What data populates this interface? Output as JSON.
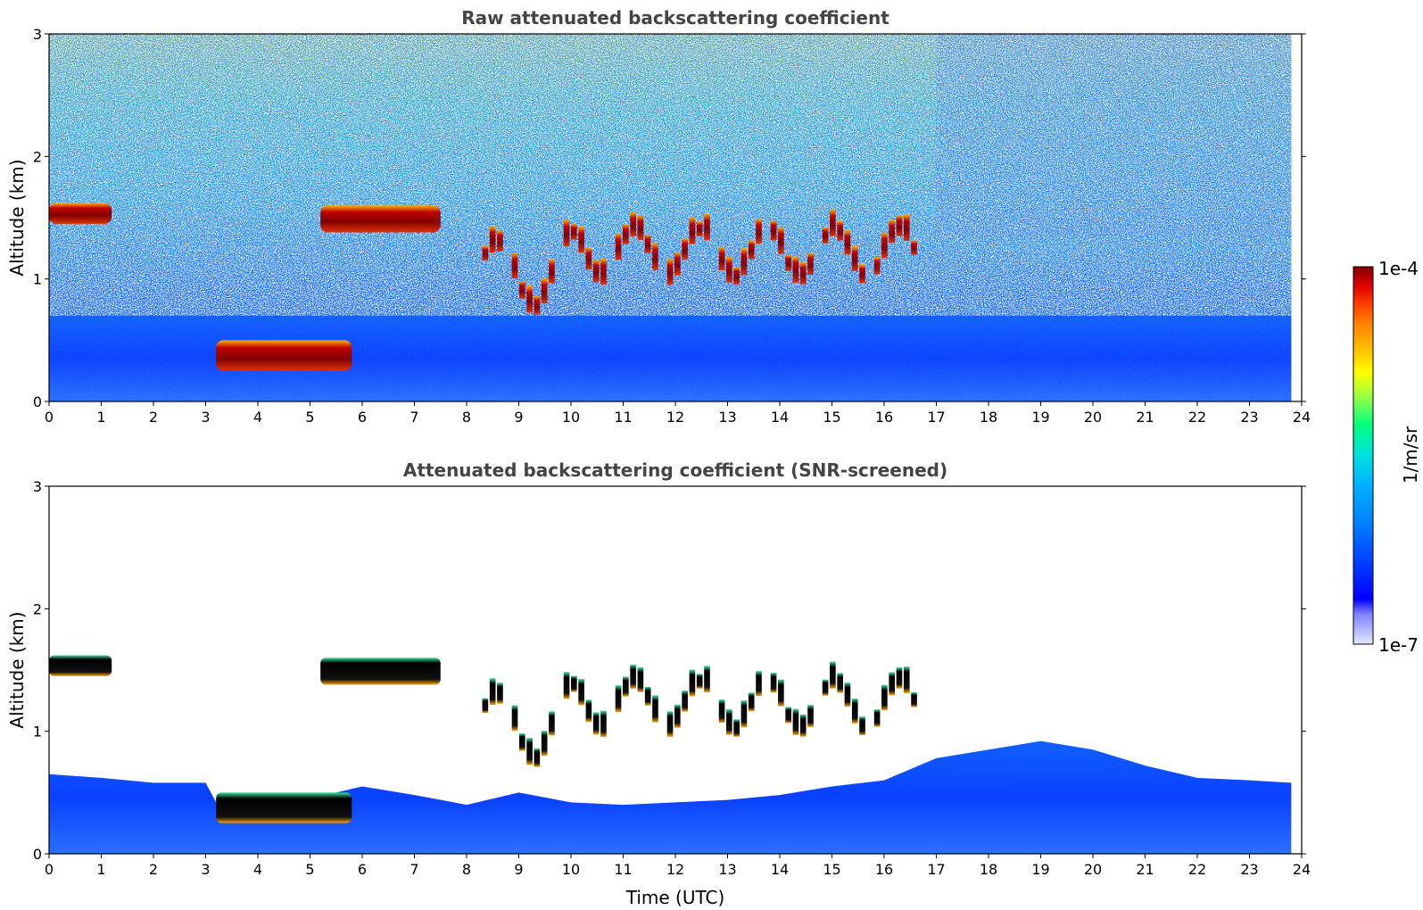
{
  "chart_data": [
    {
      "type": "heatmap",
      "title": "Raw attenuated backscattering coefficient",
      "xlabel": "",
      "ylabel": "Altitude (km)",
      "xlim": [
        0,
        24
      ],
      "ylim": [
        0,
        3
      ],
      "xticks": [
        "0",
        "1",
        "2",
        "3",
        "4",
        "5",
        "6",
        "7",
        "8",
        "9",
        "10",
        "11",
        "12",
        "13",
        "14",
        "15",
        "16",
        "17",
        "18",
        "19",
        "20",
        "21",
        "22",
        "23",
        "24"
      ],
      "yticks": [
        "0",
        "1",
        "2",
        "3"
      ],
      "data_end_hour": 23.8,
      "colormap": "jet",
      "features": [
        {
          "kind": "cloud_layer",
          "x_start": 0.0,
          "x_end": 1.2,
          "altitude_km": [
            1.45,
            1.62
          ]
        },
        {
          "kind": "cloud_layer",
          "x_start": 5.2,
          "x_end": 7.5,
          "altitude_km": [
            1.38,
            1.6
          ]
        },
        {
          "kind": "cloud_layer",
          "x_start": 3.2,
          "x_end": 5.8,
          "altitude_km": [
            0.25,
            0.5
          ]
        },
        {
          "kind": "cloud_broken",
          "x_start": 8.3,
          "x_end": 16.8,
          "altitude_km": [
            0.75,
            1.7
          ]
        },
        {
          "kind": "boundary_layer",
          "x_start": 0.0,
          "x_end": 23.8,
          "altitude_km": [
            0.0,
            0.7
          ]
        }
      ]
    },
    {
      "type": "heatmap",
      "title": "Attenuated backscattering coefficient (SNR-screened)",
      "xlabel": "Time (UTC)",
      "ylabel": "Altitude (km)",
      "xlim": [
        0,
        24
      ],
      "ylim": [
        0,
        3
      ],
      "xticks": [
        "0",
        "1",
        "2",
        "3",
        "4",
        "5",
        "6",
        "7",
        "8",
        "9",
        "10",
        "11",
        "12",
        "13",
        "14",
        "15",
        "16",
        "17",
        "18",
        "19",
        "20",
        "21",
        "22",
        "23",
        "24"
      ],
      "yticks": [
        "0",
        "1",
        "2",
        "3"
      ],
      "data_end_hour": 23.8,
      "boundary_layer_top_km": [
        [
          0,
          0.65
        ],
        [
          1,
          0.62
        ],
        [
          2,
          0.58
        ],
        [
          3,
          0.58
        ],
        [
          3.2,
          0.42
        ],
        [
          4,
          0.38
        ],
        [
          5,
          0.45
        ],
        [
          6,
          0.55
        ],
        [
          7,
          0.48
        ],
        [
          8,
          0.4
        ],
        [
          9,
          0.5
        ],
        [
          10,
          0.42
        ],
        [
          11,
          0.4
        ],
        [
          12,
          0.42
        ],
        [
          13,
          0.44
        ],
        [
          14,
          0.48
        ],
        [
          15,
          0.55
        ],
        [
          16,
          0.6
        ],
        [
          17,
          0.78
        ],
        [
          18,
          0.85
        ],
        [
          19,
          0.92
        ],
        [
          20,
          0.85
        ],
        [
          21,
          0.72
        ],
        [
          22,
          0.62
        ],
        [
          23,
          0.6
        ],
        [
          23.8,
          0.58
        ]
      ]
    }
  ],
  "colorbar": {
    "label": "1/m/sr",
    "max_label": "1e-4",
    "min_label": "1e-7",
    "colors": [
      "#e8e8ff",
      "#b0b4ff",
      "#8080ff",
      "#0000ff",
      "#0040ff",
      "#0080ff",
      "#00b0ff",
      "#00e0e0",
      "#00ff80",
      "#a0ff40",
      "#ffff00",
      "#ffc000",
      "#ff8000",
      "#ff4000",
      "#e00000",
      "#800000"
    ]
  }
}
